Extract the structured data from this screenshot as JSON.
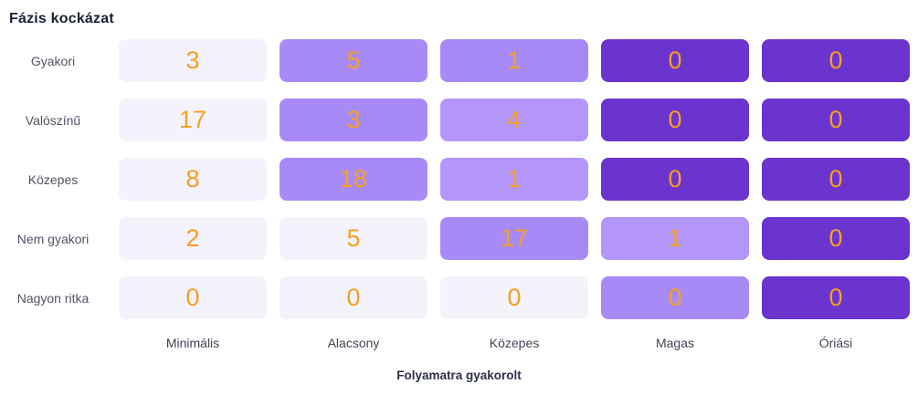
{
  "title": "Fázis kockázat",
  "axis": {
    "x_title": "Folyamatra gyakorolt",
    "x_labels": [
      "Minimális",
      "Alacsony",
      "Közepes",
      "Magas",
      "Óriási"
    ],
    "y_labels": [
      "Gyakori",
      "Valószínű",
      "Közepes",
      "Nem gyakori",
      "Nagyon ritka"
    ]
  },
  "colors": {
    "light": "#f4f2fa",
    "medium": "#a88af7",
    "medium_light": "#b495f9",
    "dark": "#6b34ce",
    "value_text": "#f2a024",
    "title_text": "#1b2137",
    "row_label_text": "#4f5464",
    "x_label_text": "#3f4555",
    "axis_title_text": "#2b3245"
  },
  "chart_data": {
    "type": "heatmap",
    "title": "Fázis kockázat",
    "xlabel": "Folyamatra gyakorolt",
    "ylabel": "",
    "x_categories": [
      "Minimális",
      "Alacsony",
      "Közepes",
      "Magas",
      "Óriási"
    ],
    "y_categories": [
      "Gyakori",
      "Valószínű",
      "Közepes",
      "Nem gyakori",
      "Nagyon ritka"
    ],
    "values": [
      [
        3,
        5,
        1,
        0,
        0
      ],
      [
        17,
        3,
        4,
        0,
        0
      ],
      [
        8,
        18,
        1,
        0,
        0
      ],
      [
        2,
        5,
        17,
        1,
        0
      ],
      [
        0,
        0,
        0,
        0,
        0
      ]
    ],
    "cell_color_tiers": [
      [
        "light",
        "medium",
        "medium",
        "dark",
        "dark"
      ],
      [
        "light",
        "medium",
        "medium_light",
        "dark",
        "dark"
      ],
      [
        "light",
        "medium",
        "medium_light",
        "dark",
        "dark"
      ],
      [
        "light",
        "light",
        "medium",
        "medium_light",
        "dark"
      ],
      [
        "light",
        "light",
        "light",
        "medium",
        "dark"
      ]
    ],
    "legend_position": "none",
    "grid": false
  }
}
